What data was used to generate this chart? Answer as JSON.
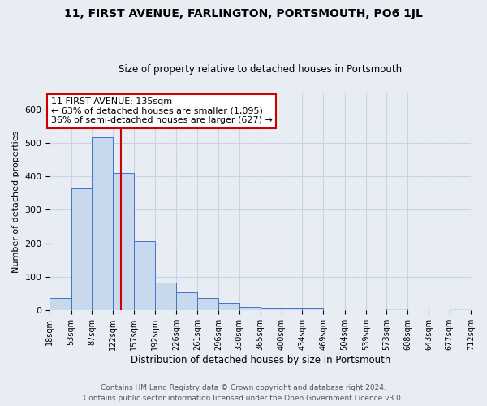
{
  "title": "11, FIRST AVENUE, FARLINGTON, PORTSMOUTH, PO6 1JL",
  "subtitle": "Size of property relative to detached houses in Portsmouth",
  "xlabel": "Distribution of detached houses by size in Portsmouth",
  "ylabel": "Number of detached properties",
  "footer_line1": "Contains HM Land Registry data © Crown copyright and database right 2024.",
  "footer_line2": "Contains public sector information licensed under the Open Government Licence v3.0.",
  "bar_edges": [
    18,
    53,
    87,
    122,
    157,
    192,
    226,
    261,
    296,
    330,
    365,
    400,
    434,
    469,
    504,
    539,
    573,
    608,
    643,
    677,
    712
  ],
  "bar_heights": [
    38,
    365,
    517,
    410,
    207,
    84,
    53,
    36,
    23,
    10,
    9,
    9,
    9,
    0,
    0,
    0,
    5,
    0,
    0,
    5
  ],
  "bar_color": "#c9d9ed",
  "bar_edge_color": "#4472c4",
  "grid_color": "#c8d4e3",
  "background_color": "#e8edf4",
  "plot_bg_color": "#e8edf4",
  "vline_x": 135,
  "vline_color": "#cc0000",
  "annotation_line1": "11 FIRST AVENUE: 135sqm",
  "annotation_line2": "← 63% of detached houses are smaller (1,095)",
  "annotation_line3": "36% of semi-detached houses are larger (627) →",
  "annotation_box_color": "#ffffff",
  "annotation_box_edge_color": "#cc0000",
  "ylim": [
    0,
    650
  ],
  "tick_labels": [
    "18sqm",
    "53sqm",
    "87sqm",
    "122sqm",
    "157sqm",
    "192sqm",
    "226sqm",
    "261sqm",
    "296sqm",
    "330sqm",
    "365sqm",
    "400sqm",
    "434sqm",
    "469sqm",
    "504sqm",
    "539sqm",
    "573sqm",
    "608sqm",
    "643sqm",
    "677sqm",
    "712sqm"
  ],
  "title_fontsize": 10,
  "subtitle_fontsize": 8.5,
  "ylabel_fontsize": 8,
  "xlabel_fontsize": 8.5,
  "tick_fontsize": 7,
  "annotation_fontsize": 8,
  "footer_fontsize": 6.5,
  "footer_color": "#555555"
}
